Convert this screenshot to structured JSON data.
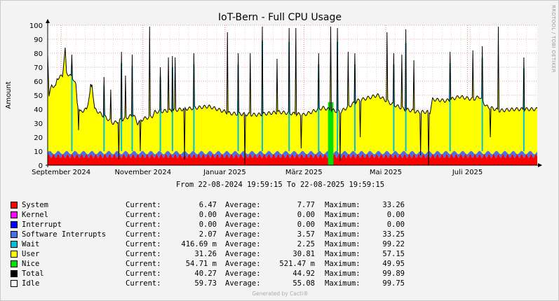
{
  "chart_data": {
    "type": "area",
    "title": "IoT-Bern - Full CPU Usage",
    "ylabel": "Amount",
    "ylim": [
      0,
      100
    ],
    "y_ticks": [
      "0",
      "10",
      "20",
      "30",
      "40",
      "50",
      "60",
      "70",
      "80",
      "90",
      "100"
    ],
    "x_range": [
      "2024-08-22",
      "2025-08-22"
    ],
    "x_ticks": [
      {
        "date": "2024-09-01",
        "label": "September 2024"
      },
      {
        "date": "2024-11-01",
        "label": "November 2024"
      },
      {
        "date": "2025-01-01",
        "label": "Januar 2025"
      },
      {
        "date": "2025-03-01",
        "label": "März 2025"
      },
      {
        "date": "2025-05-01",
        "label": "Mai 2025"
      },
      {
        "date": "2025-07-01",
        "label": "Juli 2025"
      }
    ],
    "grid": true,
    "stacked": true,
    "series_colors": {
      "System": "#ff0000",
      "Kernel": "#ff00ff",
      "Interrupt": "#0000ff",
      "Software Interrupts": "#4a6fe8",
      "Wait": "#00c0d8",
      "User": "#ffff00",
      "Nice": "#00e000",
      "Total": "#000000",
      "Idle": "#ffffff"
    },
    "total_profile": [
      {
        "x": "2024-08-22",
        "y": 80
      },
      {
        "x": "2024-08-23",
        "y": 50
      },
      {
        "x": "2024-08-25",
        "y": 57
      },
      {
        "x": "2024-08-28",
        "y": 56
      },
      {
        "x": "2024-08-29",
        "y": 62
      },
      {
        "x": "2024-09-02",
        "y": 64
      },
      {
        "x": "2024-09-04",
        "y": 83
      },
      {
        "x": "2024-09-05",
        "y": 66
      },
      {
        "x": "2024-09-10",
        "y": 62
      },
      {
        "x": "2024-09-12",
        "y": 57
      },
      {
        "x": "2024-09-13",
        "y": 45
      },
      {
        "x": "2024-09-15",
        "y": 38
      },
      {
        "x": "2024-09-20",
        "y": 40
      },
      {
        "x": "2024-09-24",
        "y": 58
      },
      {
        "x": "2024-09-26",
        "y": 40
      },
      {
        "x": "2024-10-10",
        "y": 30
      },
      {
        "x": "2024-10-20",
        "y": 34
      },
      {
        "x": "2024-10-25",
        "y": 36
      },
      {
        "x": "2024-10-28",
        "y": 30
      },
      {
        "x": "2024-11-01",
        "y": 33
      },
      {
        "x": "2024-11-08",
        "y": 35
      },
      {
        "x": "2024-11-10",
        "y": 38
      },
      {
        "x": "2024-12-01",
        "y": 40
      },
      {
        "x": "2024-12-20",
        "y": 42
      },
      {
        "x": "2025-01-05",
        "y": 37
      },
      {
        "x": "2025-01-25",
        "y": 36
      },
      {
        "x": "2025-02-10",
        "y": 38
      },
      {
        "x": "2025-03-01",
        "y": 36
      },
      {
        "x": "2025-03-15",
        "y": 41
      },
      {
        "x": "2025-03-28",
        "y": 38
      },
      {
        "x": "2025-04-10",
        "y": 46
      },
      {
        "x": "2025-04-25",
        "y": 50
      },
      {
        "x": "2025-05-05",
        "y": 44
      },
      {
        "x": "2025-05-15",
        "y": 40
      },
      {
        "x": "2025-05-25",
        "y": 38
      },
      {
        "x": "2025-06-03",
        "y": 38
      },
      {
        "x": "2025-06-05",
        "y": 47
      },
      {
        "x": "2025-06-15",
        "y": 46
      },
      {
        "x": "2025-06-25",
        "y": 49
      },
      {
        "x": "2025-07-05",
        "y": 47
      },
      {
        "x": "2025-07-10",
        "y": 49
      },
      {
        "x": "2025-07-15",
        "y": 42
      },
      {
        "x": "2025-07-25",
        "y": 39
      },
      {
        "x": "2025-08-05",
        "y": 40
      },
      {
        "x": "2025-08-22",
        "y": 40
      }
    ],
    "spikes": [
      {
        "x": "2024-09-09",
        "y": 79
      },
      {
        "x": "2024-09-23",
        "y": 58
      },
      {
        "x": "2024-10-03",
        "y": 63
      },
      {
        "x": "2024-10-08",
        "y": 54
      },
      {
        "x": "2024-10-16",
        "y": 81
      },
      {
        "x": "2024-10-19",
        "y": 64
      },
      {
        "x": "2024-10-24",
        "y": 79
      },
      {
        "x": "2024-11-06",
        "y": 99
      },
      {
        "x": "2024-11-14",
        "y": 70
      },
      {
        "x": "2024-11-20",
        "y": 77
      },
      {
        "x": "2024-11-23",
        "y": 78
      },
      {
        "x": "2024-11-25",
        "y": 77
      },
      {
        "x": "2024-12-09",
        "y": 80
      },
      {
        "x": "2025-01-03",
        "y": 95
      },
      {
        "x": "2025-01-11",
        "y": 80
      },
      {
        "x": "2025-01-20",
        "y": 80
      },
      {
        "x": "2025-01-29",
        "y": 99
      },
      {
        "x": "2025-02-09",
        "y": 76
      },
      {
        "x": "2025-02-18",
        "y": 98
      },
      {
        "x": "2025-02-23",
        "y": 98
      },
      {
        "x": "2025-03-12",
        "y": 80
      },
      {
        "x": "2025-03-21",
        "y": 99
      },
      {
        "x": "2025-03-26",
        "y": 98
      },
      {
        "x": "2025-04-03",
        "y": 81
      },
      {
        "x": "2025-04-08",
        "y": 80
      },
      {
        "x": "2025-05-02",
        "y": 95
      },
      {
        "x": "2025-05-07",
        "y": 80
      },
      {
        "x": "2025-05-13",
        "y": 79
      },
      {
        "x": "2025-05-16",
        "y": 97
      },
      {
        "x": "2025-05-22",
        "y": 75
      },
      {
        "x": "2025-06-18",
        "y": 81
      },
      {
        "x": "2025-07-05",
        "y": 82
      },
      {
        "x": "2025-07-12",
        "y": 85
      },
      {
        "x": "2025-07-24",
        "y": 99
      },
      {
        "x": "2025-08-12",
        "y": 77
      }
    ],
    "dips": [
      {
        "x": "2024-09-14",
        "y": 25
      },
      {
        "x": "2024-10-14",
        "y": 4
      },
      {
        "x": "2024-10-30",
        "y": 10
      },
      {
        "x": "2024-12-02",
        "y": 4
      },
      {
        "x": "2025-01-16",
        "y": 1
      },
      {
        "x": "2025-02-27",
        "y": 12
      },
      {
        "x": "2025-03-28",
        "y": 3
      },
      {
        "x": "2025-04-12",
        "y": 20
      },
      {
        "x": "2025-05-27",
        "y": 7
      },
      {
        "x": "2025-06-02",
        "y": 0
      },
      {
        "x": "2025-07-18",
        "y": 20
      }
    ],
    "nice_burst": {
      "from": "2025-03-19",
      "to": "2025-03-23",
      "y": 45
    }
  },
  "date_range": "From 22-08-2024 19:59:15 To 22-08-2025 19:59:15",
  "legend": [
    {
      "name": "System",
      "color": "#ff0000",
      "current": "6.47",
      "average": "7.77",
      "maximum": "33.26"
    },
    {
      "name": "Kernel",
      "color": "#ff00ff",
      "current": "0.00",
      "average": "0.00",
      "maximum": "0.00"
    },
    {
      "name": "Interrupt",
      "color": "#0000ff",
      "current": "0.00",
      "average": "0.00",
      "maximum": "0.00"
    },
    {
      "name": "Software Interrupts",
      "color": "#4a6fe8",
      "current": "2.07",
      "average": "3.57",
      "maximum": "33.25"
    },
    {
      "name": "Wait",
      "color": "#00c0d8",
      "current": "416.69 m",
      "average": "2.25",
      "maximum": "99.22"
    },
    {
      "name": "User",
      "color": "#ffff00",
      "current": "31.26",
      "average": "30.81",
      "maximum": "57.15"
    },
    {
      "name": "Nice",
      "color": "#00e000",
      "current": "54.71 m",
      "average": "521.47 m",
      "maximum": "49.95"
    },
    {
      "name": "Total",
      "color": "#000000",
      "current": "40.27",
      "average": "44.92",
      "maximum": "99.89"
    },
    {
      "name": "Idle",
      "color": "#f8f8f8",
      "current": "59.73",
      "average": "55.08",
      "maximum": "99.75"
    }
  ],
  "labels": {
    "current": "Current:",
    "average": "Average:",
    "maximum": "Maximum:"
  },
  "side_text": "RRDTOOL / TOBI OETIKER",
  "footer": "Generated by Cacti®"
}
